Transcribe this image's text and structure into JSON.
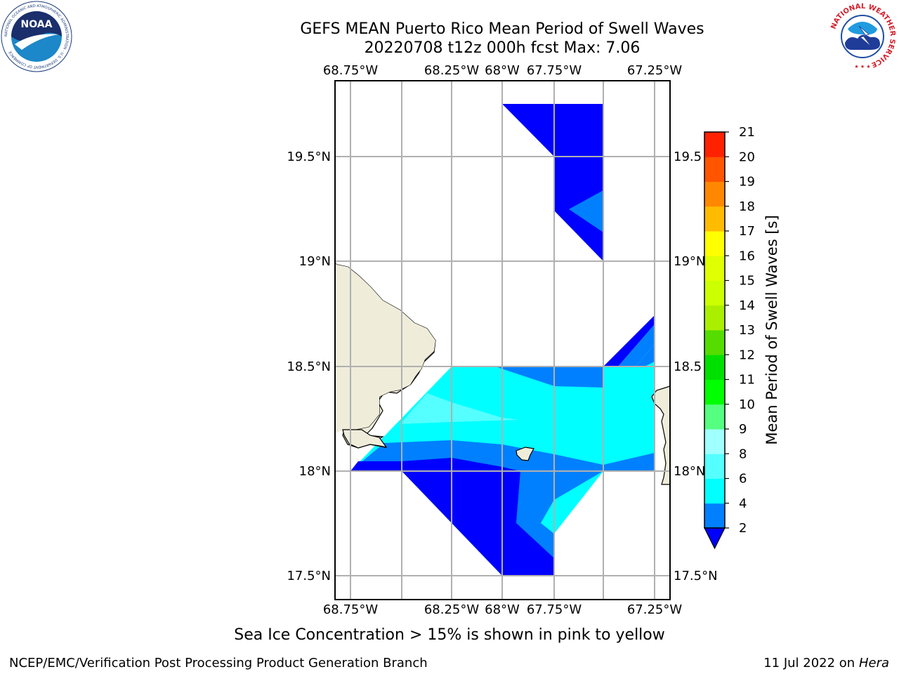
{
  "title": {
    "line1": "GEFS MEAN Puerto Rico Mean Period of Swell Waves",
    "line2": "20220708 t12z 000h fcst   Max: 7.06"
  },
  "map": {
    "lon_ticks": [
      "68.75°W",
      "68.25°W",
      "68°W",
      "67.75°W",
      "67.25°W"
    ],
    "lat_ticks": [
      "19.5°N",
      "19°N",
      "18.5°N",
      "18°N",
      "17.5°N"
    ],
    "lat_ticks_right": [
      "19.5",
      "19°N",
      "18.5",
      "18°N",
      "17.5°N"
    ],
    "extent": {
      "lon_min": -68.825,
      "lon_max": -67.165,
      "lat_min": 17.4,
      "lat_max": 19.87
    },
    "gridlines": true,
    "colors": {
      "land": "#efedda",
      "grid": "#b0b0b0",
      "level_2_4": "#0080ff",
      "level_4_6": "#00ffff",
      "level_6_8": "#55ffff",
      "level_below_2": "#0000ff"
    }
  },
  "colorbar": {
    "label": "Mean Period of Swell Waves [s]",
    "ticks": [
      "2",
      "4",
      "6",
      "8",
      "9",
      "10",
      "11",
      "12",
      "13",
      "14",
      "15",
      "16",
      "17",
      "18",
      "19",
      "20",
      "21"
    ],
    "colors": [
      "#0080ff",
      "#00ffff",
      "#55ffff",
      "#a0ffff",
      "#55ff80",
      "#00ff00",
      "#00e000",
      "#55dd00",
      "#aaee00",
      "#ccff00",
      "#e0ff00",
      "#ffff00",
      "#ffbb00",
      "#ff8800",
      "#ff5500",
      "#ff2200"
    ],
    "extend_color": "#0000ff"
  },
  "notes": {
    "sea_ice": "Sea Ice Concentration > 15% is shown in pink to yellow"
  },
  "footer": {
    "left": "NCEP/EMC/Verification Post Processing Product Generation Branch",
    "date": "11 Jul 2022 on ",
    "host": "Hera"
  },
  "logos": {
    "noaa_text": "NOAA",
    "noaa_ring": "NATIONAL OCEANIC AND ATMOSPHERIC ADMINISTRATION · U.S. DEPARTMENT OF COMMERCE",
    "nws_ring": "NATIONAL WEATHER SERVICE"
  }
}
